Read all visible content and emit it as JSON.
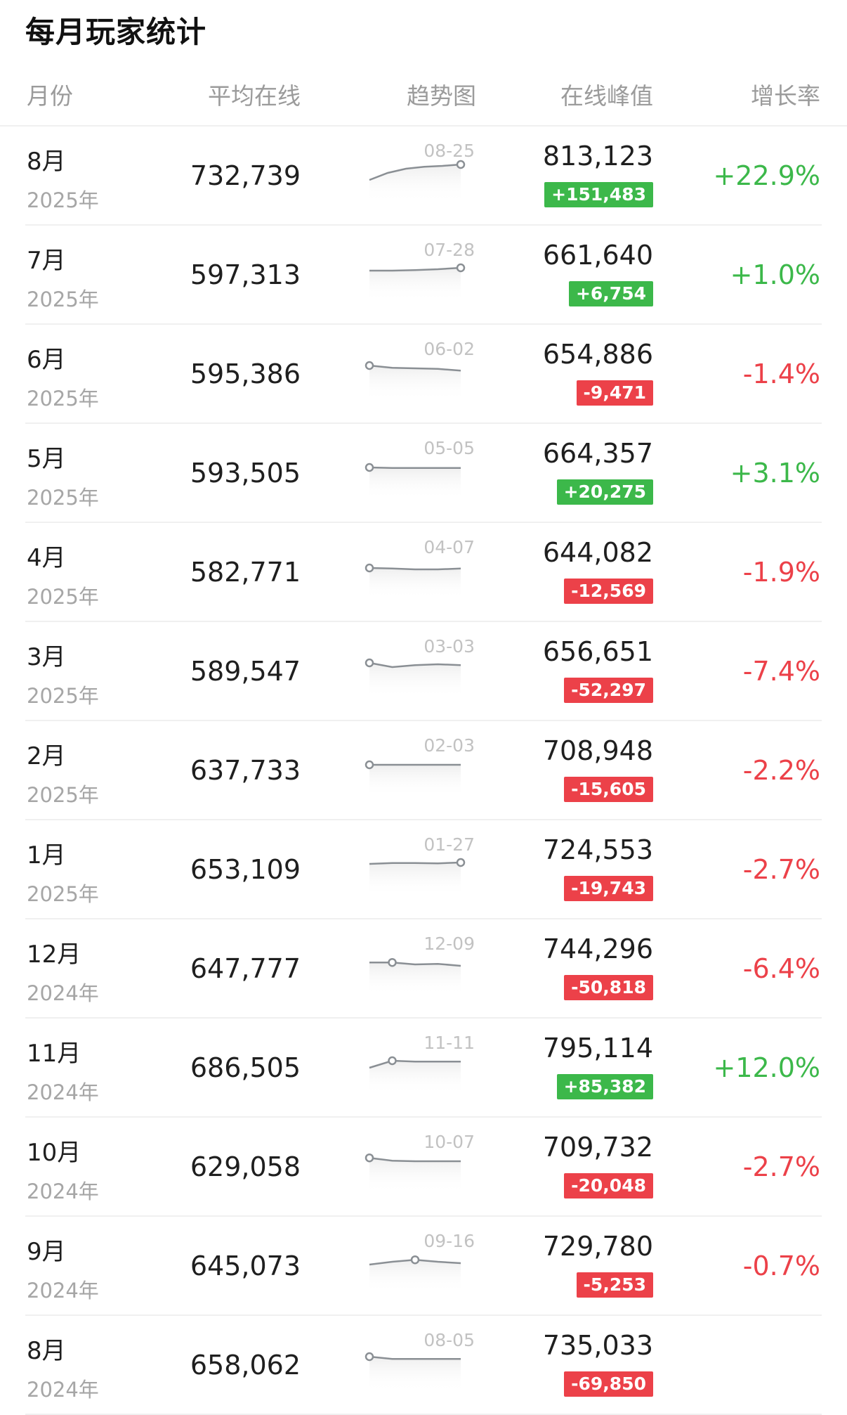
{
  "title": "每月玩家统计",
  "columns": {
    "month": "月份",
    "avg_online": "平均在线",
    "trend": "趋势图",
    "peak_online": "在线峰值",
    "growth": "增长率"
  },
  "colors": {
    "up": "#3cb84a",
    "down": "#ec4149",
    "spark_line": "#8a8f94",
    "spark_fill": "#eeeeee"
  },
  "rows": [
    {
      "month": "8月",
      "year": "2025年",
      "avg": "732,739",
      "peak_date": "08-25",
      "peak": "813,123",
      "delta": "+151,483",
      "growth": "+22.9%",
      "dir": "up",
      "trend": [
        0.25,
        0.5,
        0.65,
        0.72,
        0.75,
        0.8
      ],
      "peak_index": 5
    },
    {
      "month": "7月",
      "year": "2025年",
      "avg": "597,313",
      "peak_date": "07-28",
      "peak": "661,640",
      "delta": "+6,754",
      "growth": "+1.0%",
      "dir": "up",
      "trend": [
        0.55,
        0.55,
        0.57,
        0.6,
        0.65
      ],
      "peak_index": 4
    },
    {
      "month": "6月",
      "year": "2025年",
      "avg": "595,386",
      "peak_date": "06-02",
      "peak": "654,886",
      "delta": "-9,471",
      "growth": "-1.4%",
      "dir": "down",
      "trend": [
        0.7,
        0.62,
        0.6,
        0.58,
        0.52
      ],
      "peak_index": 0
    },
    {
      "month": "5月",
      "year": "2025年",
      "avg": "593,505",
      "peak_date": "05-05",
      "peak": "664,357",
      "delta": "+20,275",
      "growth": "+3.1%",
      "dir": "up",
      "trend": [
        0.6,
        0.58,
        0.58,
        0.58,
        0.58
      ],
      "peak_index": 0
    },
    {
      "month": "4月",
      "year": "2025年",
      "avg": "582,771",
      "peak_date": "04-07",
      "peak": "644,082",
      "delta": "-12,569",
      "growth": "-1.9%",
      "dir": "down",
      "trend": [
        0.55,
        0.53,
        0.5,
        0.5,
        0.53
      ],
      "peak_index": 0
    },
    {
      "month": "3月",
      "year": "2025年",
      "avg": "589,547",
      "peak_date": "03-03",
      "peak": "656,651",
      "delta": "-52,297",
      "growth": "-7.4%",
      "dir": "down",
      "trend": [
        0.7,
        0.55,
        0.62,
        0.65,
        0.62
      ],
      "peak_index": 0
    },
    {
      "month": "2月",
      "year": "2025年",
      "avg": "637,733",
      "peak_date": "02-03",
      "peak": "708,948",
      "delta": "-15,605",
      "growth": "-2.2%",
      "dir": "down",
      "trend": [
        0.6,
        0.6,
        0.6,
        0.6,
        0.6
      ],
      "peak_index": 0
    },
    {
      "month": "1月",
      "year": "2025年",
      "avg": "653,109",
      "peak_date": "01-27",
      "peak": "724,553",
      "delta": "-19,743",
      "growth": "-2.7%",
      "dir": "down",
      "trend": [
        0.6,
        0.63,
        0.63,
        0.62,
        0.65
      ],
      "peak_index": 4
    },
    {
      "month": "12月",
      "year": "2024年",
      "avg": "647,777",
      "peak_date": "12-09",
      "peak": "744,296",
      "delta": "-50,818",
      "growth": "-6.4%",
      "dir": "down",
      "trend": [
        0.62,
        0.62,
        0.55,
        0.57,
        0.5
      ],
      "peak_index": 1
    },
    {
      "month": "11月",
      "year": "2024年",
      "avg": "686,505",
      "peak_date": "11-11",
      "peak": "795,114",
      "delta": "+85,382",
      "growth": "+12.0%",
      "dir": "up",
      "trend": [
        0.4,
        0.65,
        0.62,
        0.62,
        0.62
      ],
      "peak_index": 1
    },
    {
      "month": "10月",
      "year": "2024年",
      "avg": "629,058",
      "peak_date": "10-07",
      "peak": "709,732",
      "delta": "-20,048",
      "growth": "-2.7%",
      "dir": "down",
      "trend": [
        0.72,
        0.62,
        0.6,
        0.6,
        0.6
      ],
      "peak_index": 0
    },
    {
      "month": "9月",
      "year": "2024年",
      "avg": "645,073",
      "peak_date": "09-16",
      "peak": "729,780",
      "delta": "-5,253",
      "growth": "-0.7%",
      "dir": "down",
      "trend": [
        0.45,
        0.55,
        0.62,
        0.55,
        0.5
      ],
      "peak_index": 2
    },
    {
      "month": "8月",
      "year": "2024年",
      "avg": "658,062",
      "peak_date": "08-05",
      "peak": "735,033",
      "delta": "-69,850",
      "growth": "",
      "dir": "down",
      "trend": [
        0.7,
        0.62,
        0.62,
        0.62,
        0.62
      ],
      "peak_index": 0
    }
  ]
}
